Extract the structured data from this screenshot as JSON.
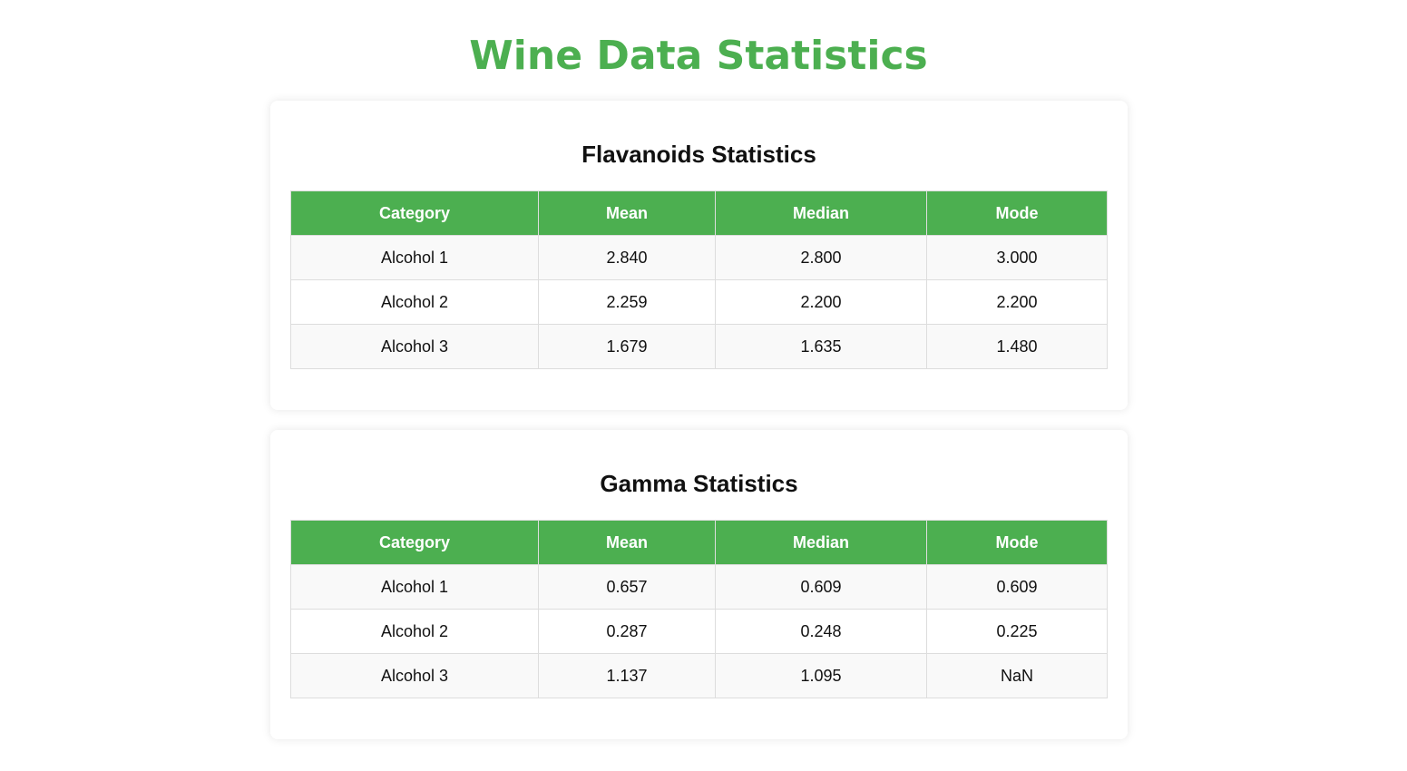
{
  "page": {
    "title": "Wine Data Statistics",
    "accent_color": "#4caf50"
  },
  "sections": [
    {
      "title": "Flavanoids Statistics",
      "columns": [
        "Category",
        "Mean",
        "Median",
        "Mode"
      ],
      "rows": [
        [
          "Alcohol 1",
          "2.840",
          "2.800",
          "3.000"
        ],
        [
          "Alcohol 2",
          "2.259",
          "2.200",
          "2.200"
        ],
        [
          "Alcohol 3",
          "1.679",
          "1.635",
          "1.480"
        ]
      ]
    },
    {
      "title": "Gamma Statistics",
      "columns": [
        "Category",
        "Mean",
        "Median",
        "Mode"
      ],
      "rows": [
        [
          "Alcohol 1",
          "0.657",
          "0.609",
          "0.609"
        ],
        [
          "Alcohol 2",
          "0.287",
          "0.248",
          "0.225"
        ],
        [
          "Alcohol 3",
          "1.137",
          "1.095",
          "NaN"
        ]
      ]
    }
  ]
}
